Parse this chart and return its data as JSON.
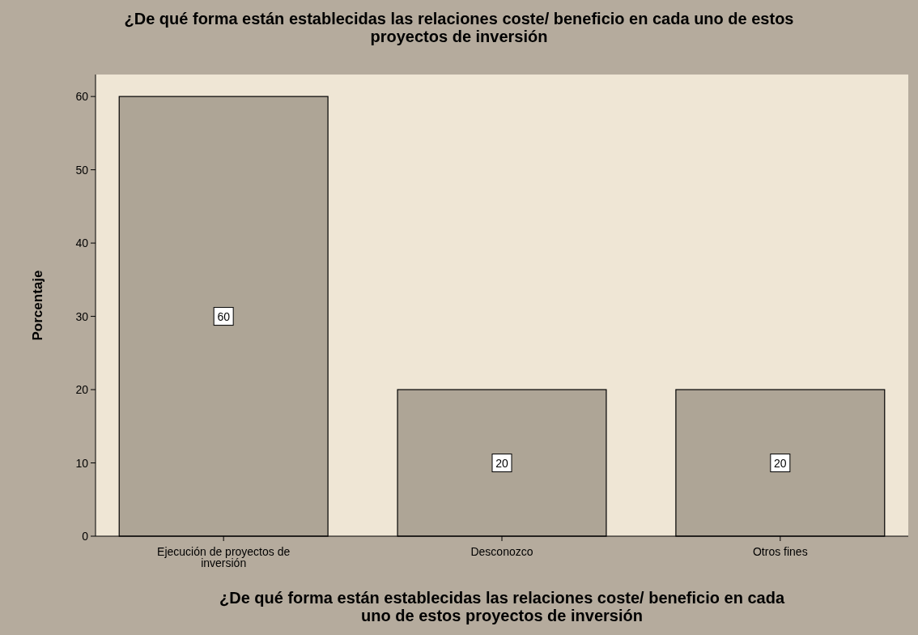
{
  "chart_data": {
    "type": "bar",
    "title": "¿De qué forma están establecidas las relaciones coste/ beneficio en cada uno de estos proyectos de inversión",
    "xlabel": "¿De qué forma están establecidas las relaciones coste/ beneficio en cada uno de estos proyectos de inversión",
    "ylabel": "Porcentaje",
    "categories": [
      "Ejecución de proyectos de inversión",
      "Desconozco",
      "Otros fines"
    ],
    "values": [
      60,
      20,
      20
    ],
    "color": "#aea596",
    "ylim": [
      0,
      63
    ],
    "yticks": [
      0,
      10,
      20,
      30,
      40,
      50,
      60
    ],
    "grid": false,
    "data_labels": true
  }
}
